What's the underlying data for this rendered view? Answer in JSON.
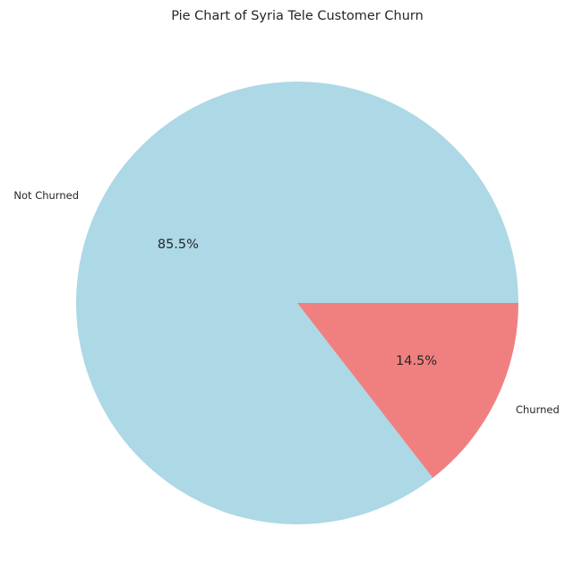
{
  "chart_data": {
    "type": "pie",
    "title": "Pie Chart of Syria Tele Customer Churn",
    "slices": [
      {
        "label": "Not Churned",
        "value": 85.5,
        "pct_label": "85.5%",
        "color": "#add8e6"
      },
      {
        "label": "Churned",
        "value": 14.5,
        "pct_label": "14.5%",
        "color": "#f08080"
      }
    ],
    "start_angle_deg": 0,
    "direction": "counterclockwise",
    "legend": false
  }
}
